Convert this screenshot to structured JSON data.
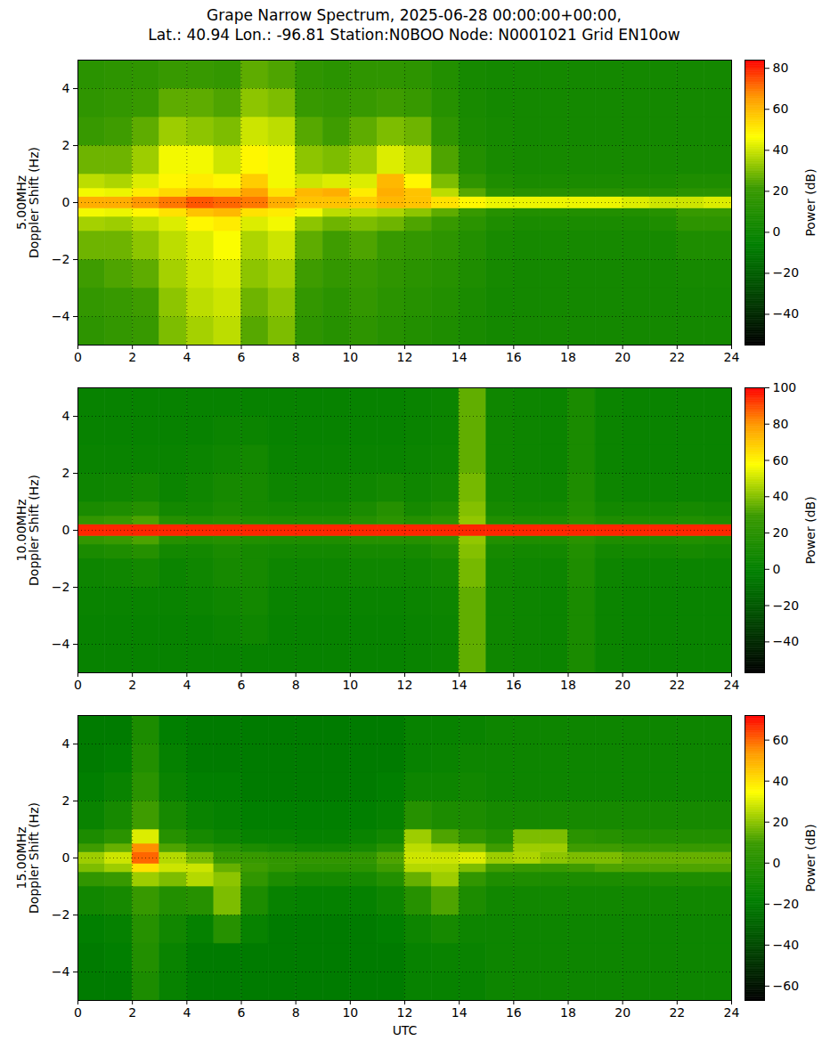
{
  "title": [
    "Grape Narrow Spectrum, 2025-06-28 00:00:00+00:00,",
    "Lat.: 40.94 Lon.: -96.81 Station:N0BOO Node: N0001021 Grid EN10ow"
  ],
  "chart_data": [
    {
      "type": "heatmap",
      "ylabel": [
        "5.00MHz",
        "Doppler Shift (Hz)"
      ],
      "xlim": [
        0,
        24
      ],
      "xticks": [
        0,
        2,
        4,
        6,
        8,
        10,
        12,
        14,
        16,
        18,
        20,
        22,
        24
      ],
      "ylim": [
        -5,
        5
      ],
      "yticks": [
        -4,
        -2,
        0,
        2,
        4
      ],
      "grid": true,
      "x_edges": [
        0,
        1,
        2,
        3,
        4,
        5,
        6,
        7,
        8,
        9,
        10,
        11,
        12,
        13,
        14,
        15,
        16,
        17,
        18,
        19,
        20,
        21,
        22,
        23,
        24
      ],
      "y_edges": [
        -5,
        -4,
        -3,
        -2,
        -1,
        -0.5,
        -0.2,
        0.2,
        0.5,
        1,
        2,
        3,
        4,
        5
      ],
      "z": [
        [
          15,
          18,
          20,
          30,
          35,
          38,
          25,
          30,
          15,
          12,
          15,
          12,
          10,
          8,
          5,
          3,
          3,
          3,
          3,
          3,
          3,
          3,
          3,
          3
        ],
        [
          18,
          20,
          22,
          32,
          38,
          40,
          28,
          32,
          18,
          14,
          18,
          14,
          12,
          10,
          6,
          3,
          3,
          3,
          3,
          3,
          3,
          3,
          3,
          3
        ],
        [
          22,
          24,
          26,
          35,
          40,
          42,
          32,
          35,
          22,
          18,
          20,
          16,
          14,
          12,
          8,
          4,
          3,
          3,
          3,
          3,
          3,
          3,
          4,
          4
        ],
        [
          28,
          28,
          32,
          38,
          42,
          46,
          36,
          40,
          26,
          22,
          24,
          20,
          18,
          15,
          10,
          5,
          4,
          4,
          4,
          4,
          4,
          4,
          8,
          8
        ],
        [
          35,
          34,
          38,
          42,
          48,
          50,
          42,
          45,
          32,
          28,
          30,
          28,
          24,
          20,
          14,
          8,
          6,
          6,
          6,
          6,
          6,
          8,
          15,
          15
        ],
        [
          45,
          44,
          48,
          52,
          58,
          60,
          52,
          50,
          45,
          38,
          38,
          36,
          32,
          26,
          20,
          12,
          10,
          10,
          10,
          10,
          10,
          12,
          20,
          20
        ],
        [
          62,
          62,
          66,
          70,
          74,
          72,
          70,
          62,
          58,
          58,
          56,
          60,
          58,
          52,
          48,
          44,
          44,
          44,
          44,
          44,
          42,
          40,
          40,
          42
        ],
        [
          45,
          44,
          50,
          54,
          58,
          58,
          64,
          52,
          60,
          62,
          50,
          62,
          58,
          38,
          25,
          14,
          12,
          12,
          12,
          12,
          12,
          12,
          14,
          14
        ],
        [
          38,
          36,
          42,
          48,
          50,
          48,
          56,
          45,
          40,
          42,
          42,
          60,
          48,
          30,
          16,
          8,
          6,
          6,
          6,
          6,
          6,
          6,
          8,
          8
        ],
        [
          28,
          28,
          34,
          45,
          45,
          40,
          48,
          45,
          32,
          30,
          34,
          42,
          38,
          24,
          10,
          5,
          4,
          4,
          4,
          4,
          4,
          4,
          4,
          4
        ],
        [
          20,
          22,
          26,
          34,
          32,
          30,
          40,
          38,
          25,
          22,
          26,
          30,
          28,
          16,
          6,
          4,
          3,
          3,
          3,
          3,
          3,
          3,
          3,
          3
        ],
        [
          16,
          18,
          20,
          26,
          26,
          24,
          32,
          30,
          20,
          18,
          20,
          22,
          20,
          12,
          5,
          3,
          3,
          3,
          3,
          3,
          3,
          3,
          3,
          3
        ],
        [
          14,
          15,
          16,
          20,
          20,
          18,
          26,
          24,
          16,
          14,
          16,
          16,
          15,
          10,
          4,
          3,
          3,
          3,
          3,
          3,
          3,
          3,
          3,
          3
        ]
      ],
      "colorbar": {
        "label": "Power (dB)",
        "lim": [
          -55,
          84
        ],
        "ticks": [
          -40,
          -20,
          0,
          20,
          40,
          60,
          80
        ]
      }
    },
    {
      "type": "heatmap",
      "ylabel": [
        "10.00MHz",
        "Doppler Shift (Hz)"
      ],
      "xlim": [
        0,
        24
      ],
      "xticks": [
        0,
        2,
        4,
        6,
        8,
        10,
        12,
        14,
        16,
        18,
        20,
        22,
        24
      ],
      "ylim": [
        -5,
        5
      ],
      "yticks": [
        -4,
        -2,
        0,
        2,
        4
      ],
      "grid": true,
      "x_edges": [
        0,
        1,
        2,
        3,
        4,
        5,
        6,
        7,
        8,
        9,
        10,
        11,
        12,
        13,
        14,
        15,
        16,
        17,
        18,
        19,
        20,
        21,
        22,
        23,
        24
      ],
      "y_edges": [
        -5,
        -4,
        -3,
        -2,
        -1,
        -0.5,
        -0.2,
        0.2,
        0.5,
        1,
        2,
        3,
        4,
        5
      ],
      "z": [
        [
          2,
          2,
          2,
          2,
          2,
          2,
          2,
          2,
          2,
          2,
          2,
          2,
          3,
          4,
          35,
          6,
          5,
          4,
          12,
          4,
          3,
          3,
          3,
          3
        ],
        [
          2,
          2,
          2,
          2,
          2,
          4,
          6,
          2,
          2,
          2,
          2,
          2,
          3,
          4,
          35,
          6,
          5,
          4,
          12,
          4,
          3,
          3,
          3,
          3
        ],
        [
          3,
          3,
          3,
          3,
          4,
          6,
          8,
          3,
          3,
          3,
          3,
          3,
          4,
          5,
          35,
          6,
          5,
          4,
          12,
          4,
          3,
          3,
          3,
          3
        ],
        [
          5,
          6,
          8,
          4,
          6,
          10,
          10,
          5,
          5,
          5,
          6,
          6,
          6,
          8,
          38,
          7,
          6,
          5,
          14,
          5,
          4,
          4,
          4,
          4
        ],
        [
          12,
          14,
          18,
          8,
          8,
          12,
          10,
          8,
          8,
          8,
          10,
          10,
          10,
          14,
          40,
          10,
          8,
          8,
          16,
          8,
          8,
          8,
          10,
          8
        ],
        [
          25,
          28,
          32,
          18,
          16,
          18,
          16,
          14,
          14,
          14,
          18,
          18,
          18,
          22,
          42,
          16,
          14,
          14,
          20,
          14,
          14,
          14,
          16,
          14
        ],
        [
          95,
          95,
          95,
          95,
          95,
          95,
          95,
          95,
          95,
          95,
          95,
          95,
          95,
          95,
          95,
          95,
          95,
          95,
          95,
          95,
          95,
          95,
          95,
          95
        ],
        [
          25,
          28,
          32,
          18,
          16,
          18,
          16,
          14,
          14,
          14,
          18,
          22,
          18,
          22,
          42,
          16,
          14,
          14,
          20,
          14,
          14,
          14,
          16,
          14
        ],
        [
          12,
          14,
          18,
          8,
          8,
          12,
          10,
          8,
          8,
          8,
          12,
          18,
          10,
          14,
          40,
          10,
          8,
          8,
          16,
          8,
          8,
          8,
          10,
          8
        ],
        [
          5,
          6,
          8,
          4,
          6,
          10,
          10,
          5,
          5,
          5,
          6,
          8,
          6,
          8,
          38,
          7,
          6,
          5,
          14,
          5,
          4,
          4,
          4,
          4
        ],
        [
          3,
          3,
          3,
          3,
          4,
          6,
          8,
          3,
          3,
          3,
          3,
          3,
          4,
          5,
          35,
          6,
          5,
          4,
          12,
          4,
          3,
          3,
          3,
          3
        ],
        [
          2,
          2,
          2,
          2,
          2,
          4,
          4,
          2,
          2,
          2,
          2,
          2,
          3,
          4,
          35,
          6,
          5,
          4,
          12,
          4,
          3,
          3,
          3,
          3
        ],
        [
          2,
          2,
          2,
          2,
          2,
          2,
          2,
          2,
          2,
          2,
          2,
          2,
          3,
          4,
          35,
          6,
          5,
          4,
          12,
          4,
          3,
          3,
          3,
          3
        ]
      ],
      "colorbar": {
        "label": "Power (dB)",
        "lim": [
          -57,
          100
        ],
        "ticks": [
          -40,
          -20,
          0,
          20,
          40,
          60,
          80,
          100
        ]
      }
    },
    {
      "type": "heatmap",
      "ylabel": [
        "15.00MHz",
        "Doppler Shift (Hz)"
      ],
      "xlabel": "UTC",
      "xlim": [
        0,
        24
      ],
      "xticks": [
        0,
        2,
        4,
        6,
        8,
        10,
        12,
        14,
        16,
        18,
        20,
        22,
        24
      ],
      "ylim": [
        -5,
        5
      ],
      "yticks": [
        -4,
        -2,
        0,
        2,
        4
      ],
      "grid": true,
      "x_edges": [
        0,
        1,
        2,
        3,
        4,
        5,
        6,
        7,
        8,
        9,
        10,
        11,
        12,
        13,
        14,
        15,
        16,
        17,
        18,
        19,
        20,
        21,
        22,
        23,
        24
      ],
      "y_edges": [
        -5,
        -4,
        -3,
        -2,
        -1,
        -0.5,
        -0.2,
        0.2,
        0.5,
        1,
        2,
        3,
        4,
        5
      ],
      "z": [
        [
          -20,
          -20,
          -5,
          -15,
          -20,
          -20,
          -20,
          -20,
          -20,
          -20,
          -20,
          -20,
          -15,
          -15,
          -15,
          -12,
          -12,
          -12,
          -12,
          -12,
          -12,
          -12,
          -12,
          -12
        ],
        [
          -20,
          -18,
          -2,
          -14,
          -20,
          -20,
          -20,
          -20,
          -20,
          -20,
          -20,
          -20,
          -15,
          -14,
          -14,
          -12,
          -12,
          -12,
          -12,
          -12,
          -12,
          -12,
          -12,
          -12
        ],
        [
          -18,
          -16,
          0,
          -10,
          -16,
          0,
          -15,
          -20,
          -20,
          -20,
          -20,
          -18,
          -12,
          -8,
          -12,
          -12,
          -12,
          -12,
          -12,
          -12,
          -12,
          -12,
          -12,
          -12
        ],
        [
          -10,
          -8,
          8,
          -2,
          0,
          18,
          -5,
          -15,
          -16,
          -16,
          -16,
          -12,
          0,
          12,
          -5,
          -10,
          -10,
          -10,
          -10,
          -10,
          -10,
          -10,
          -10,
          -10
        ],
        [
          5,
          8,
          22,
          18,
          25,
          20,
          5,
          -5,
          -8,
          -8,
          -8,
          -2,
          15,
          22,
          5,
          -4,
          -4,
          -5,
          -5,
          -5,
          -5,
          -4,
          -4,
          -4
        ],
        [
          18,
          22,
          40,
          28,
          28,
          15,
          10,
          5,
          2,
          2,
          2,
          10,
          25,
          25,
          18,
          10,
          8,
          8,
          10,
          12,
          12,
          12,
          12,
          12
        ],
        [
          22,
          28,
          60,
          25,
          18,
          8,
          8,
          5,
          5,
          5,
          5,
          12,
          28,
          28,
          30,
          22,
          24,
          20,
          18,
          18,
          15,
          15,
          15,
          15
        ],
        [
          10,
          15,
          55,
          12,
          5,
          0,
          -5,
          -8,
          -10,
          -10,
          -8,
          0,
          26,
          22,
          18,
          10,
          22,
          22,
          10,
          10,
          8,
          8,
          8,
          8
        ],
        [
          -5,
          2,
          30,
          0,
          -8,
          -12,
          -15,
          -15,
          -16,
          -16,
          -14,
          -10,
          22,
          12,
          4,
          -2,
          18,
          18,
          2,
          0,
          -2,
          -2,
          -2,
          -2
        ],
        [
          -14,
          -8,
          10,
          -8,
          -14,
          -16,
          -18,
          -18,
          -18,
          -18,
          -18,
          -16,
          0,
          -5,
          -5,
          -8,
          -8,
          -8,
          -8,
          -8,
          -8,
          -8,
          -8,
          -8
        ],
        [
          -18,
          -14,
          2,
          -14,
          -18,
          -18,
          -20,
          -20,
          -20,
          -20,
          -20,
          -18,
          -12,
          -12,
          -10,
          -12,
          -12,
          -12,
          -12,
          -12,
          -12,
          -12,
          -12,
          -12
        ],
        [
          -20,
          -18,
          -2,
          -16,
          -20,
          -20,
          -20,
          -20,
          -20,
          -20,
          -20,
          -20,
          -15,
          -14,
          -12,
          -12,
          -12,
          -12,
          -12,
          -12,
          -12,
          -12,
          -12,
          -12
        ],
        [
          -20,
          -20,
          -5,
          -18,
          -20,
          -20,
          -20,
          -20,
          -20,
          -20,
          -20,
          -20,
          -15,
          -15,
          -14,
          -12,
          -12,
          -12,
          -12,
          -12,
          -12,
          -12,
          -12,
          -12
        ]
      ],
      "colorbar": {
        "label": "Power (dB)",
        "lim": [
          -67,
          72
        ],
        "ticks": [
          -60,
          -40,
          -20,
          0,
          20,
          40,
          60
        ]
      }
    }
  ]
}
